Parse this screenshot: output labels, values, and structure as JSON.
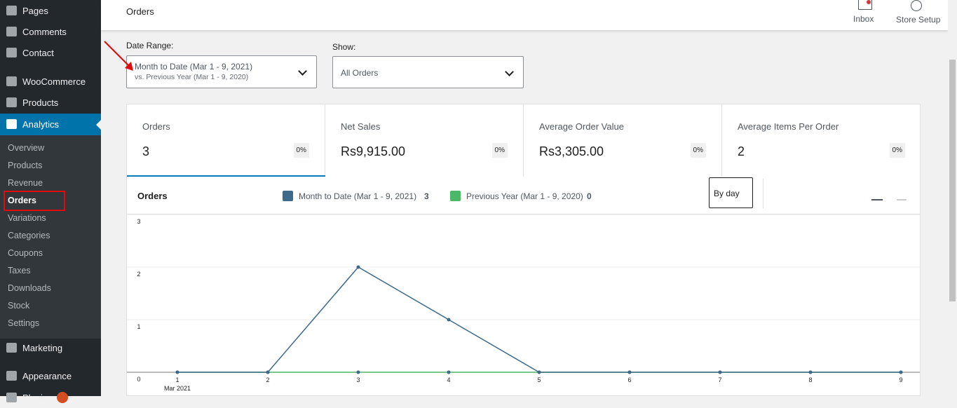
{
  "sidebar": {
    "top_items": [
      "Pages",
      "Comments",
      "Contact",
      "WooCommerce",
      "Products",
      "Analytics"
    ],
    "submenu": [
      "Overview",
      "Products",
      "Revenue",
      "Orders",
      "Variations",
      "Categories",
      "Coupons",
      "Taxes",
      "Downloads",
      "Stock",
      "Settings"
    ],
    "bottom_items": [
      "Marketing",
      "Appearance",
      "Plugins"
    ]
  },
  "header": {
    "title": "Orders",
    "actions": [
      "Inbox",
      "Store Setup"
    ]
  },
  "filters": {
    "date_range_label": "Date Range:",
    "date_range_primary": "Month to Date (Mar 1 - 9, 2021)",
    "date_range_secondary": "vs. Previous Year (Mar 1 - 9, 2020)",
    "show_label": "Show:",
    "show_value": "All Orders"
  },
  "cards": [
    {
      "label": "Orders",
      "value": "3",
      "change": "0%"
    },
    {
      "label": "Net Sales",
      "value": "Rs9,915.00",
      "change": "0%"
    },
    {
      "label": "Average Order Value",
      "value": "Rs3,305.00",
      "change": "0%"
    },
    {
      "label": "Average Items Per Order",
      "value": "2",
      "change": "0%"
    }
  ],
  "chart_panel": {
    "interval": "By day",
    "totals": [
      3,
      0
    ]
  },
  "chart_data": {
    "type": "line",
    "title": "Orders",
    "categories": [
      "1",
      "2",
      "3",
      "4",
      "5",
      "6",
      "7",
      "8",
      "9"
    ],
    "x_sublabel": "Mar 2021",
    "series": [
      {
        "name": "Month to Date (Mar 1 - 9, 2021)",
        "color": "#3d6a8a",
        "values": [
          0,
          0,
          2,
          1,
          0,
          0,
          0,
          0,
          0
        ]
      },
      {
        "name": "Previous Year (Mar 1 - 9, 2020)",
        "color": "#4ab866",
        "values": [
          0,
          0,
          0,
          0,
          0,
          0,
          0,
          0,
          0
        ]
      }
    ],
    "ylim": [
      0,
      3
    ],
    "yticks": [
      0,
      1,
      2,
      3
    ],
    "grid": true
  }
}
